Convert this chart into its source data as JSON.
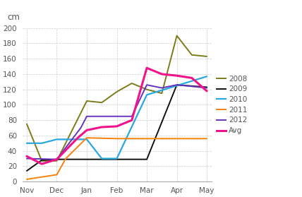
{
  "title": "cm",
  "ylim": [
    0,
    200
  ],
  "yticks": [
    0,
    20,
    40,
    60,
    80,
    100,
    120,
    140,
    160,
    180,
    200
  ],
  "xtick_labels": [
    "Nov",
    "Dec",
    "Jan",
    "Feb",
    "Mar",
    "Apr",
    "May"
  ],
  "series": {
    "2008": {
      "color": "#7b7b1a",
      "lw": 1.4,
      "x": [
        0,
        0.5,
        1.0,
        2.0,
        2.5,
        3.0,
        3.5,
        4.0,
        4.5,
        5.0,
        5.5,
        6.0
      ],
      "y": [
        75,
        27,
        27,
        105,
        103,
        117,
        128,
        120,
        115,
        190,
        165,
        163
      ]
    },
    "2009": {
      "color": "#111111",
      "lw": 1.4,
      "x": [
        0,
        0.5,
        1.0,
        2.0,
        3.0,
        4.0,
        5.0,
        6.0
      ],
      "y": [
        14,
        28,
        29,
        29,
        29,
        29,
        126,
        123
      ]
    },
    "2010": {
      "color": "#29a8e0",
      "lw": 1.6,
      "x": [
        0,
        0.5,
        1.0,
        2.0,
        2.5,
        3.0,
        4.0,
        5.0,
        6.0
      ],
      "y": [
        50,
        50,
        55,
        55,
        30,
        30,
        113,
        125,
        137
      ]
    },
    "2011": {
      "color": "#f5820d",
      "lw": 1.4,
      "x": [
        0,
        1.0,
        1.3,
        2.0,
        3.0,
        4.0,
        5.0,
        6.0
      ],
      "y": [
        3,
        9,
        30,
        57,
        56,
        56,
        56,
        56
      ]
    },
    "2012": {
      "color": "#6633bb",
      "lw": 1.4,
      "x": [
        0,
        1.0,
        1.8,
        2.0,
        3.0,
        3.5,
        4.0,
        4.5,
        5.0,
        6.0
      ],
      "y": [
        30,
        29,
        70,
        85,
        85,
        85,
        126,
        122,
        126,
        122
      ]
    },
    "Avg": {
      "color": "#f0148c",
      "lw": 2.2,
      "x": [
        0,
        0.5,
        1.0,
        1.7,
        2.0,
        2.5,
        3.0,
        3.5,
        4.0,
        4.5,
        5.0,
        5.5,
        6.0
      ],
      "y": [
        33,
        23,
        29,
        57,
        67,
        71,
        72,
        80,
        148,
        140,
        138,
        135,
        118
      ]
    }
  },
  "legend_order": [
    "2008",
    "2009",
    "2010",
    "2011",
    "2012",
    "Avg"
  ]
}
